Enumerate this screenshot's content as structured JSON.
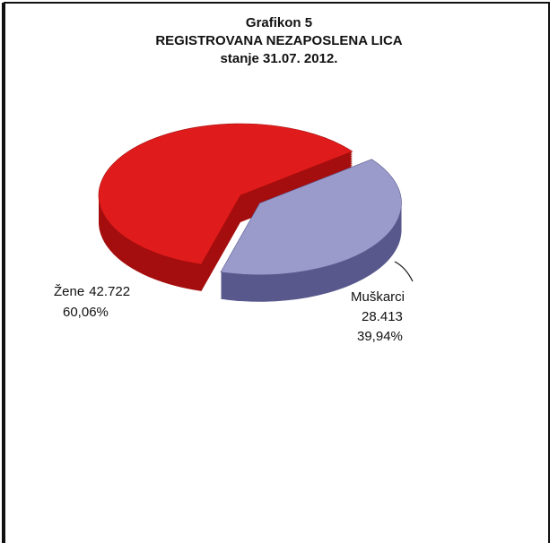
{
  "chart_data": {
    "type": "pie",
    "title": [
      "Grafikon 5",
      "REGISTROVANA NEZAPOSLENA LICA",
      "stanje 31.07. 2012."
    ],
    "categories": [
      "Žene",
      "Muškarci"
    ],
    "values": [
      42722,
      28413
    ],
    "value_labels": [
      "42.722",
      "28.413"
    ],
    "percent": [
      60.06,
      39.94
    ],
    "percent_labels": [
      "60,06%",
      "39,94%"
    ],
    "colors": [
      "#e01b1b",
      "#9a9acb"
    ],
    "side_colors": [
      "#a50e0e",
      "#58588c"
    ]
  }
}
